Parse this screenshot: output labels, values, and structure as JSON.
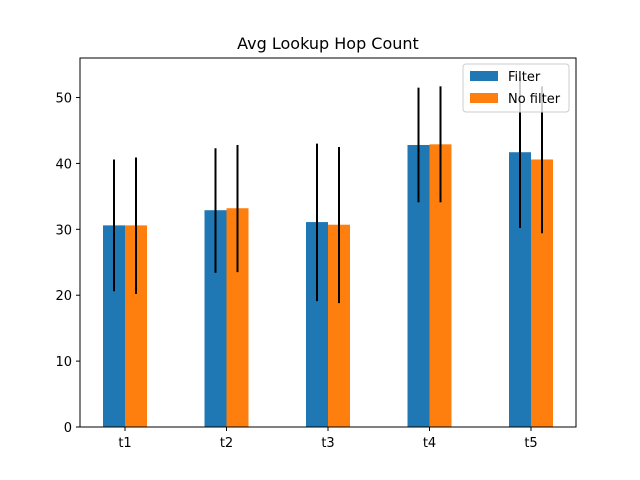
{
  "chart_data": {
    "type": "bar",
    "title": "Avg Lookup Hop Count",
    "xlabel": "",
    "ylabel": "",
    "categories": [
      "t1",
      "t2",
      "t3",
      "t4",
      "t5"
    ],
    "series": [
      {
        "name": "Filter",
        "color": "#1f77b4",
        "values": [
          30.6,
          32.9,
          31.1,
          42.8,
          41.7
        ],
        "err_low": [
          20.6,
          23.4,
          19.1,
          34.1,
          30.2
        ],
        "err_high": [
          40.6,
          42.3,
          43.0,
          51.5,
          53.1
        ]
      },
      {
        "name": "No filter",
        "color": "#ff7f0e",
        "values": [
          30.6,
          33.2,
          30.7,
          42.9,
          40.6
        ],
        "err_low": [
          20.2,
          23.5,
          18.8,
          34.1,
          29.4
        ],
        "err_high": [
          40.9,
          42.8,
          42.5,
          51.7,
          51.7
        ]
      }
    ],
    "ylim": [
      0,
      56
    ],
    "yticks": [
      0,
      10,
      20,
      30,
      40,
      50
    ],
    "grid": false,
    "legend_position": "top-right"
  }
}
